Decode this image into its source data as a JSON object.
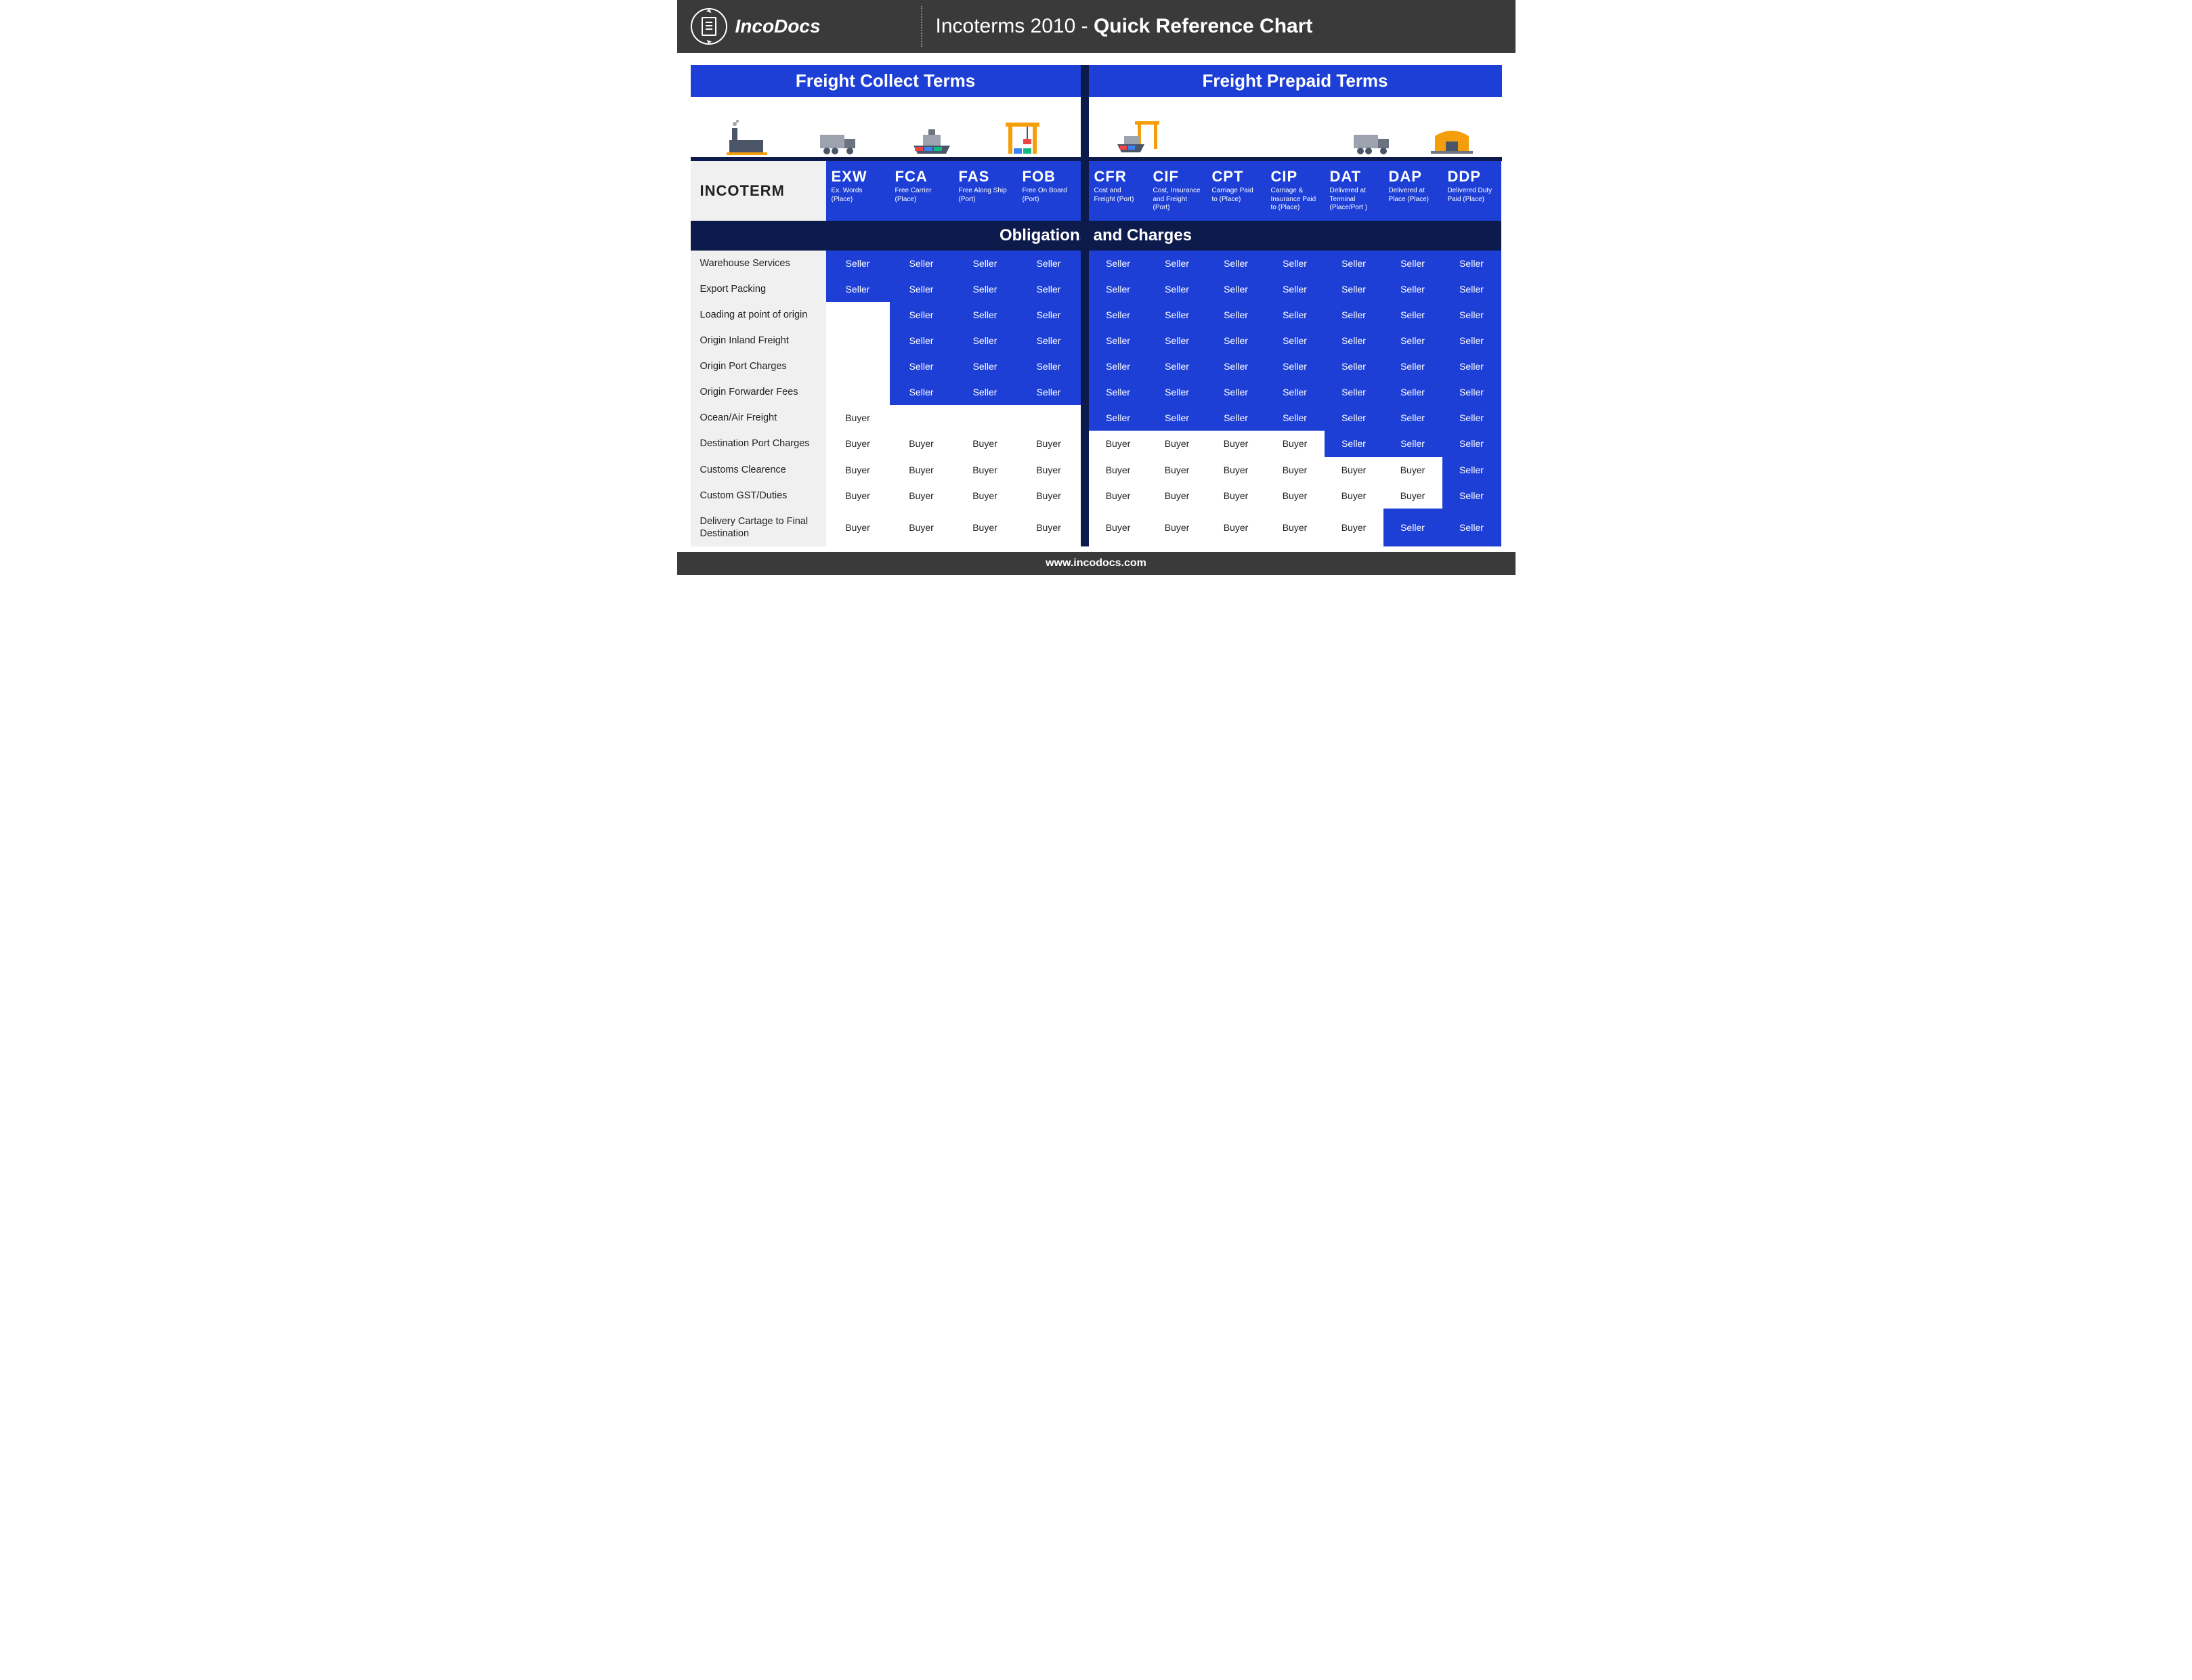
{
  "brand": "IncoDocs",
  "title_prefix": "Incoterms 2010 - ",
  "title_bold": "Quick Reference Chart",
  "section_left": "Freight Collect Terms",
  "section_right": "Freight Prepaid Terms",
  "incoterm_label": "INCOTERM",
  "obligations_label": "Obligations and Charges",
  "footer": "www.incodocs.com",
  "colors": {
    "topbar": "#3a3a3a",
    "blue": "#1d3fd6",
    "navy": "#0d1b4c",
    "labelbg": "#f0f0f0"
  },
  "terms": [
    {
      "code": "EXW",
      "desc": "Ex. Words (Place)"
    },
    {
      "code": "FCA",
      "desc": "Free Carrier (Place)"
    },
    {
      "code": "FAS",
      "desc": "Free Along Ship (Port)"
    },
    {
      "code": "FOB",
      "desc": "Free On Board (Port)"
    },
    {
      "code": "CFR",
      "desc": "Cost and Freight (Port)"
    },
    {
      "code": "CIF",
      "desc": "Cost, Insurance and Freight (Port)"
    },
    {
      "code": "CPT",
      "desc": "Carriage Paid to (Place)"
    },
    {
      "code": "CIP",
      "desc": "Carriage & Insurance Paid to (Place)"
    },
    {
      "code": "DAT",
      "desc": "Delivered at Terminal (Place/Port )"
    },
    {
      "code": "DAP",
      "desc": "Delivered at Place (Place)"
    },
    {
      "code": "DDP",
      "desc": "Delivered Duty Paid (Place)"
    }
  ],
  "rows": [
    {
      "label": "Warehouse Services",
      "vals": [
        "Seller",
        "Seller",
        "Seller",
        "Seller",
        "Seller",
        "Seller",
        "Seller",
        "Seller",
        "Seller",
        "Seller",
        "Seller"
      ]
    },
    {
      "label": "Export Packing",
      "vals": [
        "Seller",
        "Seller",
        "Seller",
        "Seller",
        "Seller",
        "Seller",
        "Seller",
        "Seller",
        "Seller",
        "Seller",
        "Seller"
      ]
    },
    {
      "label": "Loading at point of origin",
      "vals": [
        "",
        "Seller",
        "Seller",
        "Seller",
        "Seller",
        "Seller",
        "Seller",
        "Seller",
        "Seller",
        "Seller",
        "Seller"
      ]
    },
    {
      "label": "Origin Inland Freight",
      "vals": [
        "",
        "Seller",
        "Seller",
        "Seller",
        "Seller",
        "Seller",
        "Seller",
        "Seller",
        "Seller",
        "Seller",
        "Seller"
      ]
    },
    {
      "label": "Origin Port Charges",
      "vals": [
        "",
        "Seller",
        "Seller",
        "Seller",
        "Seller",
        "Seller",
        "Seller",
        "Seller",
        "Seller",
        "Seller",
        "Seller"
      ]
    },
    {
      "label": "Origin Forwarder Fees",
      "vals": [
        "",
        "Seller",
        "Seller",
        "Seller",
        "Seller",
        "Seller",
        "Seller",
        "Seller",
        "Seller",
        "Seller",
        "Seller"
      ]
    },
    {
      "label": "Ocean/Air Freight",
      "vals": [
        "Buyer",
        "",
        "",
        "",
        "Seller",
        "Seller",
        "Seller",
        "Seller",
        "Seller",
        "Seller",
        "Seller"
      ]
    },
    {
      "label": "Destination Port Charges",
      "vals": [
        "Buyer",
        "Buyer",
        "Buyer",
        "Buyer",
        "Buyer",
        "Buyer",
        "Buyer",
        "Buyer",
        "Seller",
        "Seller",
        "Seller"
      ]
    },
    {
      "label": "Customs Clearence",
      "vals": [
        "Buyer",
        "Buyer",
        "Buyer",
        "Buyer",
        "Buyer",
        "Buyer",
        "Buyer",
        "Buyer",
        "Buyer",
        "Buyer",
        "Seller"
      ]
    },
    {
      "label": "Custom GST/Duties",
      "vals": [
        "Buyer",
        "Buyer",
        "Buyer",
        "Buyer",
        "Buyer",
        "Buyer",
        "Buyer",
        "Buyer",
        "Buyer",
        "Buyer",
        "Seller"
      ]
    },
    {
      "label": "Delivery Cartage to Final Destination",
      "vals": [
        "Buyer",
        "Buyer",
        "Buyer",
        "Buyer",
        "Buyer",
        "Buyer",
        "Buyer",
        "Buyer",
        "Buyer",
        "Seller",
        "Seller"
      ]
    }
  ],
  "icons": {
    "left": [
      "factory",
      "truck",
      "ship",
      "crane"
    ],
    "right": [
      "ship-crane",
      "spacer",
      "spacer",
      "truck2",
      "warehouse"
    ]
  }
}
